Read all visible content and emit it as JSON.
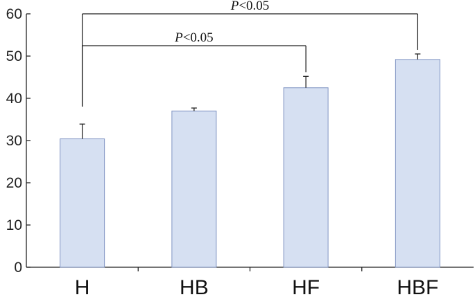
{
  "chart_data": {
    "type": "bar",
    "categories": [
      "H",
      "HB",
      "HF",
      "HBF"
    ],
    "values": [
      30.4,
      37.0,
      42.5,
      49.2
    ],
    "error_bars": [
      3.5,
      0.7,
      2.7,
      1.3
    ],
    "ylim": [
      0,
      60
    ],
    "yticks": [
      "0",
      "10",
      "20",
      "30",
      "40",
      "50",
      "60"
    ],
    "grid": false,
    "colors": {
      "bar_fill": "#d6e0f2",
      "bar_stroke": "#7f93c2",
      "axis": "#222222"
    },
    "annotations": [
      {
        "from": "H",
        "to": "HF",
        "p_symbol": "P",
        "p_rest": "<0.05"
      },
      {
        "from": "H",
        "to": "HBF",
        "p_symbol": "P",
        "p_rest": "<0.05"
      }
    ]
  }
}
